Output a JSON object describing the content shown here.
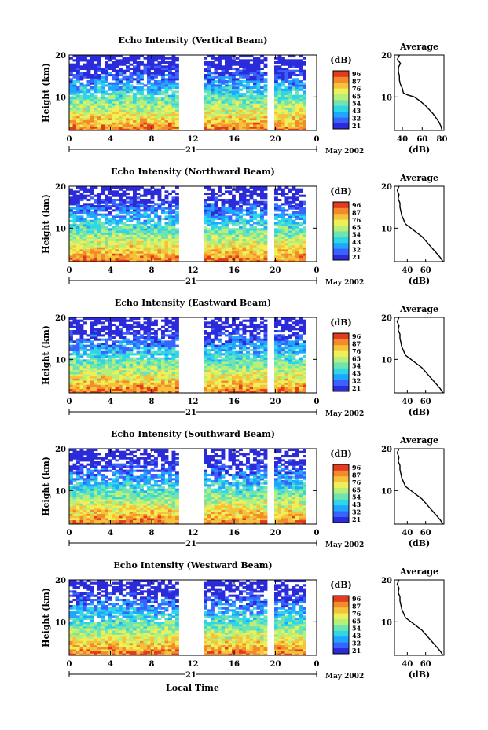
{
  "figure": {
    "xlabel": "Local Time",
    "date_label": "May 2002",
    "day_label": "21",
    "cbar_unit": "(dB)",
    "avg_title": "Average",
    "avg_xlabel": "(dB)",
    "panel_ylabel": "Height (km)"
  },
  "colormap": [
    "#2b2bd9",
    "#3a62ff",
    "#1fa6ff",
    "#2fd6e6",
    "#6fe3b0",
    "#b6f07a",
    "#eef05a",
    "#f6c23a",
    "#f38a2c",
    "#e23b1f"
  ],
  "chart_data": [
    {
      "type": "heatmap",
      "title": "Echo Intensity (Vertical Beam)",
      "xlabel": "Local Time",
      "ylabel": "Height (km)",
      "xlim": [
        0,
        24
      ],
      "ylim": [
        2,
        20
      ],
      "xticks": [
        "0",
        "4",
        "8",
        "12",
        "16",
        "20",
        "0"
      ],
      "yticks": [
        "10",
        "20"
      ],
      "data_gaps_hours": [
        [
          10.5,
          13.0
        ],
        [
          19.2,
          19.8
        ]
      ],
      "colorbar": {
        "unit": "(dB)",
        "ticks": [
          "96",
          "87",
          "76",
          "65",
          "54",
          "43",
          "32",
          "21"
        ]
      },
      "average_profile": {
        "title": "Average",
        "xlabel": "(dB)",
        "xticks": [
          "40",
          "60",
          "80"
        ],
        "xlim": [
          32,
          82
        ],
        "ylim": [
          2,
          20
        ],
        "height_km": [
          2,
          3,
          4,
          5,
          6,
          7,
          8,
          9,
          10,
          10.5,
          11,
          12,
          13,
          14,
          15,
          16,
          17,
          18,
          19,
          20
        ],
        "value_db": [
          80,
          79,
          77,
          74,
          71,
          67,
          63,
          58,
          52,
          45,
          41,
          40,
          38,
          37,
          37,
          36,
          36,
          38,
          35,
          37
        ]
      }
    },
    {
      "type": "heatmap",
      "title": "Echo Intensity (Northward Beam)",
      "xlabel": "Local Time",
      "ylabel": "Height (km)",
      "xlim": [
        0,
        24
      ],
      "ylim": [
        2,
        20
      ],
      "xticks": [
        "0",
        "4",
        "8",
        "12",
        "16",
        "20",
        "0"
      ],
      "yticks": [
        "10",
        "20"
      ],
      "data_gaps_hours": [
        [
          10.5,
          13.0
        ],
        [
          19.2,
          19.8
        ]
      ],
      "colorbar": {
        "unit": "(dB)",
        "ticks": [
          "96",
          "87",
          "76",
          "65",
          "54",
          "43",
          "32",
          "21"
        ]
      },
      "average_profile": {
        "title": "Average",
        "xlabel": "(dB)",
        "xticks": [
          "40",
          "60"
        ],
        "xlim": [
          26,
          80
        ],
        "ylim": [
          2,
          20
        ],
        "height_km": [
          2,
          3,
          4,
          5,
          6,
          7,
          8,
          9,
          10,
          11,
          12,
          13,
          14,
          15,
          16,
          17,
          18,
          19,
          20
        ],
        "value_db": [
          79,
          76,
          72,
          68,
          64,
          60,
          56,
          50,
          44,
          38,
          36,
          34,
          33,
          32,
          32,
          30,
          31,
          29,
          31
        ]
      }
    },
    {
      "type": "heatmap",
      "title": "Echo Intensity (Eastward Beam)",
      "xlabel": "Local Time",
      "ylabel": "Height (km)",
      "xlim": [
        0,
        24
      ],
      "ylim": [
        2,
        20
      ],
      "xticks": [
        "0",
        "4",
        "8",
        "12",
        "16",
        "20",
        "0"
      ],
      "yticks": [
        "10",
        "20"
      ],
      "data_gaps_hours": [
        [
          10.5,
          13.0
        ],
        [
          19.2,
          19.8
        ]
      ],
      "colorbar": {
        "unit": "(dB)",
        "ticks": [
          "96",
          "87",
          "76",
          "65",
          "54",
          "43",
          "32",
          "21"
        ]
      },
      "average_profile": {
        "title": "Average",
        "xlabel": "(dB)",
        "xticks": [
          "40",
          "60"
        ],
        "xlim": [
          26,
          80
        ],
        "ylim": [
          2,
          20
        ],
        "height_km": [
          2,
          3,
          4,
          5,
          6,
          7,
          8,
          9,
          10,
          11,
          12,
          13,
          14,
          15,
          16,
          17,
          18,
          19,
          20
        ],
        "value_db": [
          79,
          76,
          72,
          68,
          64,
          60,
          56,
          50,
          44,
          38,
          36,
          34,
          33,
          32,
          32,
          30,
          31,
          29,
          31
        ]
      }
    },
    {
      "type": "heatmap",
      "title": "Echo Intensity (Southward Beam)",
      "xlabel": "Local Time",
      "ylabel": "Height (km)",
      "xlim": [
        0,
        24
      ],
      "ylim": [
        2,
        20
      ],
      "xticks": [
        "0",
        "4",
        "8",
        "12",
        "16",
        "20",
        "0"
      ],
      "yticks": [
        "10",
        "20"
      ],
      "data_gaps_hours": [
        [
          10.5,
          13.0
        ],
        [
          19.2,
          19.8
        ]
      ],
      "colorbar": {
        "unit": "(dB)",
        "ticks": [
          "96",
          "87",
          "76",
          "65",
          "54",
          "43",
          "32",
          "21"
        ]
      },
      "average_profile": {
        "title": "Average",
        "xlabel": "(dB)",
        "xticks": [
          "40",
          "60"
        ],
        "xlim": [
          26,
          80
        ],
        "ylim": [
          2,
          20
        ],
        "height_km": [
          2,
          3,
          4,
          5,
          6,
          7,
          8,
          9,
          10,
          11,
          12,
          13,
          14,
          15,
          16,
          17,
          18,
          19,
          20
        ],
        "value_db": [
          79,
          76,
          72,
          68,
          64,
          60,
          56,
          50,
          44,
          38,
          36,
          34,
          33,
          32,
          32,
          30,
          31,
          29,
          31
        ]
      }
    },
    {
      "type": "heatmap",
      "title": "Echo Intensity (Westward Beam)",
      "xlabel": "Local Time",
      "ylabel": "Height (km)",
      "xlim": [
        0,
        24
      ],
      "ylim": [
        2,
        20
      ],
      "xticks": [
        "0",
        "4",
        "8",
        "12",
        "16",
        "20",
        "0"
      ],
      "yticks": [
        "10",
        "20"
      ],
      "data_gaps_hours": [
        [
          10.5,
          13.0
        ],
        [
          19.2,
          19.8
        ]
      ],
      "colorbar": {
        "unit": "(dB)",
        "ticks": [
          "96",
          "87",
          "76",
          "65",
          "54",
          "43",
          "32",
          "21"
        ]
      },
      "average_profile": {
        "title": "Average",
        "xlabel": "(dB)",
        "xticks": [
          "40",
          "60"
        ],
        "xlim": [
          26,
          80
        ],
        "ylim": [
          2,
          20
        ],
        "height_km": [
          2,
          3,
          4,
          5,
          6,
          7,
          8,
          9,
          10,
          11,
          12,
          13,
          14,
          15,
          16,
          17,
          18,
          19,
          20
        ],
        "value_db": [
          79,
          76,
          72,
          68,
          64,
          60,
          56,
          50,
          44,
          38,
          36,
          34,
          33,
          32,
          32,
          30,
          31,
          29,
          31
        ]
      }
    }
  ]
}
